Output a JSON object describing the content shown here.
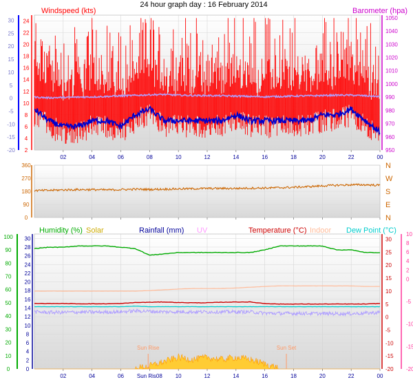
{
  "title": "24 hour graph day : 16 February 2014",
  "colors": {
    "wind": "#ff0000",
    "wind_avg": "#0000cc",
    "baro": "#cc00cc",
    "baro_line": "#b0a0ff",
    "dir": "#cc6600",
    "humidity": "#00aa00",
    "solar": "#ccaa00",
    "solar_fill": "#ffcc33",
    "rainfall": "#000099",
    "uv": "#ff99ff",
    "temperature": "#cc0000",
    "indoor": "#ffbb99",
    "dewpoint": "#00cccc",
    "xtick": "#000099",
    "left_scale": "#0000ff",
    "pink_scale": "#ff3399"
  },
  "x_ticks": [
    "02",
    "04",
    "06",
    "08",
    "10",
    "12",
    "14",
    "16",
    "18",
    "20",
    "22",
    "00"
  ],
  "panel3_x_ticks": [
    "02",
    "04",
    "06",
    "10",
    "12",
    "14",
    "16",
    "18",
    "20",
    "22",
    "00"
  ],
  "panel3_x_overlap_label": "Sun Ris08",
  "chart_data": [
    {
      "type": "line",
      "name": "wind_baro",
      "labels": {
        "left": "Windspeed (kts)",
        "right": "Barometer (hpa)"
      },
      "left_axis_outer": {
        "ticks": [
          -20,
          -15,
          -10,
          -5,
          0,
          5,
          10,
          15,
          20,
          25,
          30
        ],
        "range": [
          -20,
          32
        ]
      },
      "left_axis_inner": {
        "ticks": [
          2,
          4,
          6,
          8,
          10,
          12,
          14,
          16,
          18,
          20,
          22,
          24
        ],
        "range": [
          2,
          25
        ]
      },
      "right_axis": {
        "ticks": [
          950,
          960,
          970,
          980,
          990,
          1000,
          1010,
          1020,
          1030,
          1040,
          1050
        ],
        "range": [
          950,
          1052
        ]
      },
      "x_hours_range": [
        0,
        24
      ],
      "series": [
        {
          "key": "wind_gust",
          "color": "wind",
          "note": "noisy red gust bars approx. 4-24 kts"
        },
        {
          "key": "wind_avg",
          "color": "wind_avg",
          "values_hourly": [
            9,
            7,
            6,
            6,
            7,
            7,
            6,
            8,
            9,
            7,
            7,
            7,
            7,
            7,
            8,
            7,
            7,
            7,
            7,
            7,
            8,
            8,
            9,
            7,
            5
          ]
        },
        {
          "key": "barometer",
          "color": "baro_line",
          "values_hourly": [
            990,
            989.5,
            989.8,
            990,
            990.2,
            990.5,
            991,
            991.3,
            991.8,
            992,
            991.5,
            991.2,
            991.2,
            991,
            990.8,
            990.5,
            990.3,
            990.5,
            990.8,
            991,
            991.2,
            991.5,
            991.5,
            991,
            990.5
          ]
        }
      ]
    },
    {
      "type": "line",
      "name": "wind_direction",
      "y_ticks": [
        0,
        90,
        180,
        270,
        360
      ],
      "range": [
        0,
        360
      ],
      "compass_labels": [
        "N",
        "W",
        "S",
        "E",
        "N"
      ],
      "values_hourly": [
        185,
        187,
        190,
        192,
        192,
        190,
        192,
        195,
        193,
        195,
        197,
        198,
        200,
        200,
        200,
        202,
        203,
        205,
        208,
        212,
        218,
        222,
        225,
        225,
        222
      ]
    },
    {
      "type": "line",
      "name": "atmosphere",
      "labels": [
        "Humidity (%)",
        "Solar",
        "Rainfall (mm)",
        "UV",
        "Temperature (°C)",
        "Indoor",
        "Dew Point (°C)"
      ],
      "axis_humidity": {
        "ticks": [
          0,
          10,
          20,
          30,
          40,
          50,
          60,
          70,
          80,
          90,
          100
        ],
        "range": [
          0,
          102
        ]
      },
      "axis_rain": {
        "ticks": [
          0,
          2,
          4,
          6,
          8,
          10,
          12,
          14,
          16,
          18,
          20,
          22,
          24,
          26,
          28,
          30
        ],
        "range": [
          0,
          31
        ]
      },
      "axis_temp": {
        "ticks": [
          -20,
          -15,
          -10,
          -5,
          0,
          5,
          10,
          15,
          20,
          25,
          30
        ],
        "range": [
          -20,
          32
        ]
      },
      "axis_uv": {
        "ticks": [
          -20,
          -15,
          -10,
          -5,
          0,
          2,
          4,
          6,
          8,
          10
        ],
        "range": [
          -20,
          10
        ]
      },
      "annotations": [
        {
          "text": "Sun Rise",
          "hour": 7.9
        },
        {
          "text": "Sun Set",
          "hour": 17.5
        }
      ],
      "series": [
        {
          "key": "humidity",
          "color": "humidity",
          "axis": "axis_humidity",
          "values_hourly": [
            91,
            92,
            92,
            93,
            93,
            93,
            92,
            91,
            86,
            87,
            88,
            88,
            88,
            88,
            88,
            88,
            90,
            93,
            93,
            93,
            93,
            90,
            90,
            88,
            88
          ]
        },
        {
          "key": "indoor",
          "color": "indoor",
          "axis": "axis_temp",
          "values_hourly": [
            10,
            10,
            10,
            10,
            10,
            10,
            10,
            10,
            10.2,
            10.5,
            10.8,
            11,
            11,
            11,
            11.2,
            11.5,
            11.8,
            12,
            12,
            12,
            12,
            12,
            12,
            11.8,
            11.8
          ]
        },
        {
          "key": "temperature",
          "color": "temperature",
          "axis": "axis_temp",
          "values_hourly": [
            5.2,
            5.2,
            5.2,
            5.1,
            5.1,
            5.1,
            5.2,
            5.6,
            5.7,
            5.8,
            5.6,
            5.5,
            5.5,
            5.7,
            5.8,
            5.8,
            5.2,
            5,
            5,
            5,
            5,
            5,
            5,
            5,
            5.2
          ]
        },
        {
          "key": "dewpoint",
          "color": "dewpoint",
          "axis": "axis_temp",
          "values_hourly": [
            4,
            4,
            4,
            4,
            4,
            4,
            4,
            4.2,
            4,
            4,
            4,
            4,
            4,
            4,
            4,
            4,
            4,
            4,
            4,
            4,
            4,
            4,
            4,
            4,
            4
          ]
        },
        {
          "key": "uv_band",
          "color": "baro_line",
          "axis": "axis_temp",
          "values_hourly": [
            2,
            1.8,
            1.8,
            1.9,
            1.9,
            1.9,
            2,
            2.4,
            2.2,
            2,
            2,
            2,
            2,
            2,
            2,
            2,
            1.5,
            1.4,
            1.4,
            1.4,
            1.3,
            1.3,
            1.3,
            1.5,
            1.8
          ]
        },
        {
          "key": "solar",
          "color": "solar_fill",
          "axis": "axis_rain",
          "values_hourly": [
            0,
            0,
            0,
            0,
            0,
            0,
            0,
            0,
            0.5,
            1.5,
            2.5,
            2,
            2.5,
            2,
            2.5,
            2,
            1,
            0,
            0,
            0,
            0,
            0,
            0,
            0,
            0
          ]
        }
      ]
    }
  ]
}
